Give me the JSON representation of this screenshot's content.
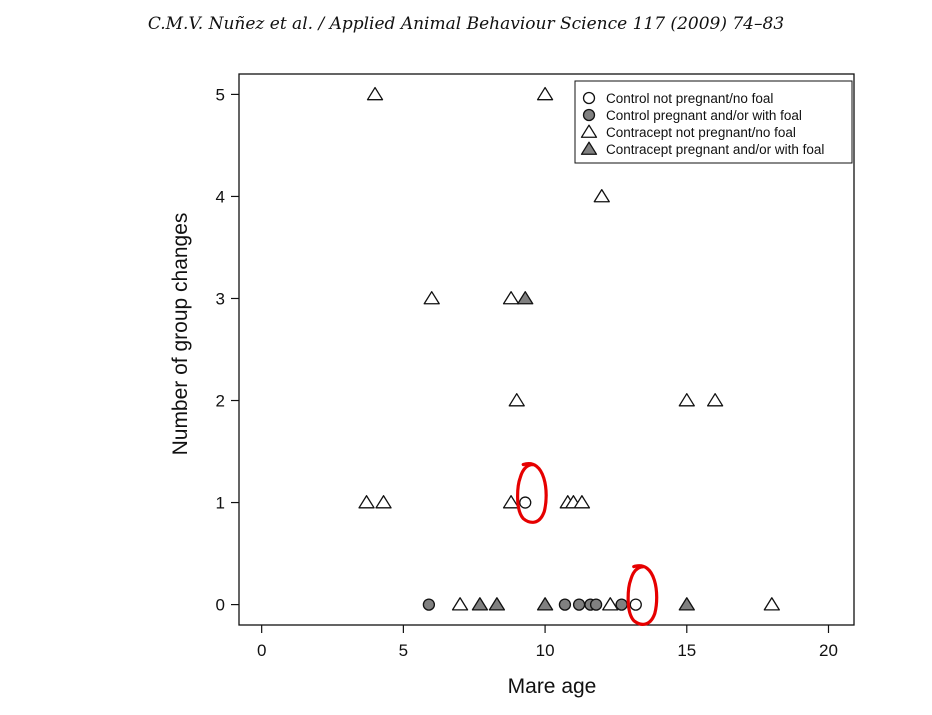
{
  "header": {
    "citation": "C.M.V. Nuñez et al. / Applied Animal Behaviour Science 117 (2009) 74–83"
  },
  "colors": {
    "filled": "#808080",
    "stroke": "#111111",
    "annotation": "#e60000"
  },
  "chart_data": {
    "type": "scatter",
    "xlabel": "Mare age",
    "ylabel": "Number of group changes",
    "xlim": [
      -0.8,
      20.9
    ],
    "ylim": [
      -0.2,
      5.2
    ],
    "xticks": [
      0,
      5,
      10,
      15,
      20
    ],
    "yticks": [
      0,
      1,
      2,
      3,
      4,
      5
    ],
    "grid": false,
    "legend_position": "top-right",
    "series": [
      {
        "name": "Control not pregnant/no foal",
        "marker": "circle-open",
        "points": [
          [
            9.3,
            1
          ],
          [
            13.2,
            0
          ]
        ]
      },
      {
        "name": "Control pregnant and/or with foal",
        "marker": "circle-filled",
        "points": [
          [
            5.9,
            0
          ],
          [
            10.7,
            0
          ],
          [
            11.2,
            0
          ],
          [
            11.6,
            0
          ],
          [
            11.8,
            0
          ],
          [
            12.7,
            0
          ]
        ]
      },
      {
        "name": "Contracept not pregnant/no foal",
        "marker": "triangle-open",
        "points": [
          [
            4.0,
            5
          ],
          [
            10.0,
            5
          ],
          [
            12.0,
            4
          ],
          [
            6.0,
            3
          ],
          [
            8.8,
            3
          ],
          [
            9.0,
            2
          ],
          [
            15.0,
            2
          ],
          [
            16.0,
            2
          ],
          [
            3.7,
            1
          ],
          [
            4.3,
            1
          ],
          [
            8.8,
            1
          ],
          [
            10.8,
            1
          ],
          [
            11.0,
            1
          ],
          [
            11.3,
            1
          ],
          [
            7.0,
            0
          ],
          [
            12.3,
            0
          ],
          [
            18.0,
            0
          ]
        ]
      },
      {
        "name": "Contracept pregnant and/or with foal",
        "marker": "triangle-filled",
        "points": [
          [
            9.3,
            3
          ],
          [
            7.7,
            0
          ],
          [
            8.3,
            0
          ],
          [
            10.0,
            0
          ],
          [
            15.0,
            0
          ]
        ]
      }
    ],
    "annotations": [
      {
        "type": "hand-drawn-circle",
        "around": [
          9.3,
          1
        ]
      },
      {
        "type": "hand-drawn-circle",
        "around": [
          13.2,
          0
        ]
      }
    ]
  }
}
